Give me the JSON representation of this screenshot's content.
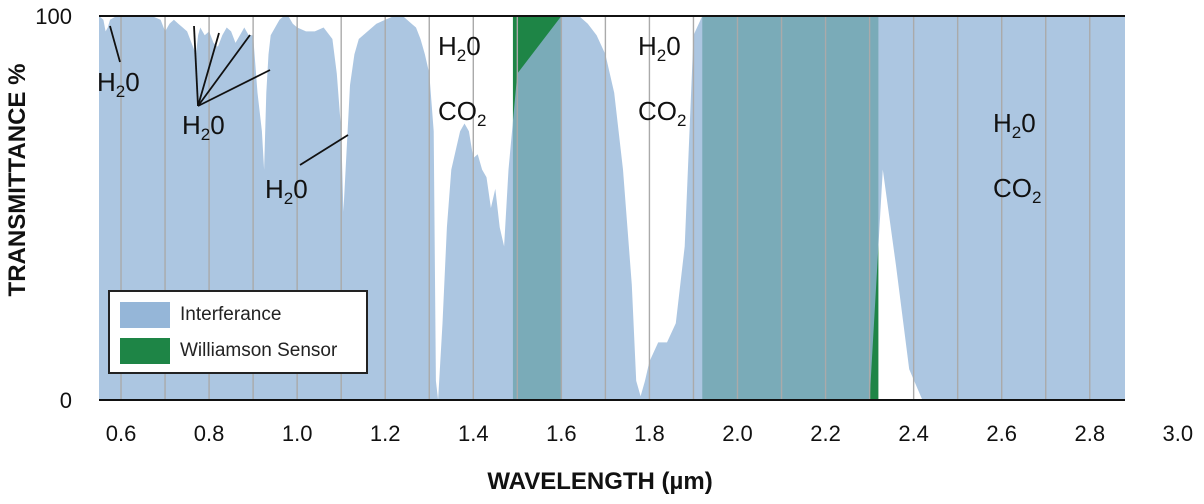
{
  "chart_data": {
    "type": "area",
    "xlabel": "WAVELENGTH (µm)",
    "ylabel": "TRANSMITTANCE %",
    "xlim": [
      0.55,
      3.0
    ],
    "ylim": [
      0,
      100
    ],
    "x_ticks": [
      "0.6",
      "0.8",
      "1.0",
      "1.2",
      "1.4",
      "1.6",
      "1.8",
      "2.0",
      "2.2",
      "2.4",
      "2.6",
      "2.8",
      "3.0"
    ],
    "y_ticks": [
      "0",
      "100"
    ],
    "grid": "vertical",
    "legend_position": "bottom-left",
    "series": [
      {
        "name": "Interferance",
        "color": "#95b6d8",
        "x": [
          0.55,
          0.56,
          0.565,
          0.57,
          0.575,
          0.59,
          0.63,
          0.67,
          0.69,
          0.7,
          0.71,
          0.72,
          0.73,
          0.74,
          0.75,
          0.76,
          0.77,
          0.775,
          0.78,
          0.79,
          0.8,
          0.81,
          0.82,
          0.83,
          0.84,
          0.85,
          0.86,
          0.87,
          0.88,
          0.89,
          0.9,
          0.91,
          0.92,
          0.925,
          0.93,
          0.935,
          0.94,
          0.95,
          0.96,
          0.97,
          0.98,
          0.99,
          1.0,
          1.02,
          1.04,
          1.06,
          1.08,
          1.09,
          1.1,
          1.105,
          1.11,
          1.12,
          1.13,
          1.14,
          1.16,
          1.18,
          1.2,
          1.22,
          1.24,
          1.26,
          1.27,
          1.28,
          1.29,
          1.3,
          1.31,
          1.315,
          1.32,
          1.33,
          1.34,
          1.35,
          1.36,
          1.37,
          1.38,
          1.39,
          1.4,
          1.41,
          1.42,
          1.43,
          1.44,
          1.45,
          1.46,
          1.47,
          1.48,
          1.5,
          1.6,
          1.62,
          1.64,
          1.66,
          1.68,
          1.7,
          1.72,
          1.74,
          1.76,
          1.77,
          1.78,
          1.79,
          1.8,
          1.82,
          1.84,
          1.86,
          1.88,
          1.9,
          1.92,
          1.94,
          2.0,
          2.1,
          2.2,
          2.25,
          2.3,
          2.33,
          2.36,
          2.39,
          2.42,
          2.45,
          2.5,
          2.6,
          2.7,
          2.75,
          2.8,
          2.85,
          2.9,
          2.95,
          3.0
        ],
        "y": [
          100,
          99,
          96,
          97,
          99,
          100,
          100,
          100,
          99,
          96,
          98,
          99,
          98,
          97,
          96,
          93,
          90,
          95,
          97,
          95,
          96,
          93,
          92,
          95,
          97,
          96,
          93,
          95,
          97,
          95,
          95,
          80,
          70,
          60,
          80,
          90,
          95,
          97,
          99,
          100,
          100,
          98,
          97,
          96,
          96,
          97,
          94,
          85,
          70,
          49,
          60,
          82,
          90,
          94,
          96,
          98,
          99,
          100,
          100,
          98,
          97,
          94,
          90,
          85,
          70,
          5,
          0,
          20,
          45,
          60,
          65,
          70,
          72,
          70,
          63,
          64,
          60,
          58,
          50,
          55,
          45,
          40,
          60,
          85,
          100,
          100,
          100,
          98,
          95,
          90,
          80,
          60,
          30,
          5,
          1,
          5,
          10,
          15,
          15,
          20,
          40,
          95,
          100,
          100,
          100,
          100,
          100,
          100,
          100,
          100,
          100,
          100,
          100,
          100,
          100,
          100,
          100,
          100,
          100,
          100,
          100,
          100,
          100
        ],
        "lower_y": [
          0,
          0,
          0,
          0,
          0,
          0,
          0,
          0,
          0,
          0,
          0,
          0,
          0,
          0,
          0,
          0,
          0,
          0,
          0,
          0,
          0,
          0,
          0,
          0,
          0,
          0,
          0,
          0,
          0,
          0,
          0,
          0,
          0,
          0,
          0,
          0,
          0,
          0,
          0,
          0,
          0,
          0,
          0,
          0,
          0,
          0,
          0,
          0,
          0,
          0,
          0,
          0,
          0,
          0,
          0,
          0,
          0,
          0,
          0,
          0,
          0,
          0,
          0,
          0,
          0,
          0,
          0,
          0,
          0,
          0,
          0,
          0,
          0,
          0,
          0,
          0,
          0,
          0,
          0,
          0,
          0,
          0,
          0,
          0,
          0,
          0,
          0,
          0,
          0,
          0,
          0,
          0,
          0,
          0,
          0,
          0,
          0,
          0,
          0,
          0,
          0,
          0,
          0,
          0,
          0,
          0,
          0,
          0,
          0,
          60,
          35,
          8,
          0,
          0,
          0,
          0,
          0,
          0,
          0,
          0,
          0,
          0,
          0
        ]
      },
      {
        "name": "Williamson Sensor",
        "color": "#1e8546",
        "bands": [
          [
            1.49,
            1.6
          ],
          [
            1.92,
            2.32
          ]
        ]
      }
    ],
    "annotations": [
      {
        "base": "H",
        "sub": "2",
        "tail": "0",
        "line2": ""
      },
      {
        "base": "H",
        "sub": "2",
        "tail": "0",
        "line2": ""
      },
      {
        "base": "H",
        "sub": "2",
        "tail": "0",
        "line2": ""
      },
      {
        "base": "H",
        "sub": "2",
        "tail": "0",
        "line2": "CO"
      },
      {
        "base": "H",
        "sub": "2",
        "tail": "0",
        "line2": "CO"
      },
      {
        "base": "H",
        "sub": "2",
        "tail": "0",
        "line2": "CO"
      }
    ]
  }
}
